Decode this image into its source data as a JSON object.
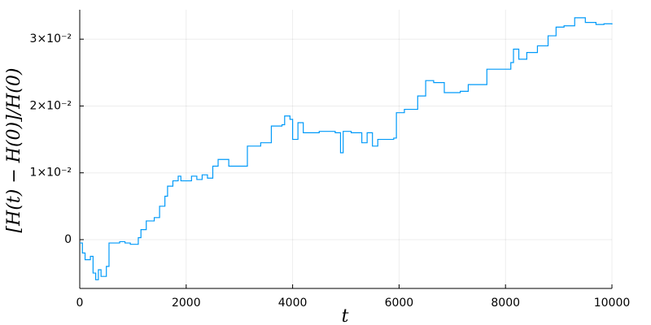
{
  "chart_data": {
    "type": "line",
    "step": "post",
    "xlabel": "t",
    "ylabel": "[H(t) − H(0)]/H(0)",
    "xlim": [
      0,
      10000
    ],
    "xticks": [
      0,
      2000,
      4000,
      6000,
      8000,
      10000
    ],
    "ylim": [
      -0.0073,
      0.0344
    ],
    "yticks": [
      0,
      {
        "value": 0.01,
        "label": "1×10⁻²"
      },
      {
        "value": 0.02,
        "label": "2×10⁻²"
      },
      {
        "value": 0.03,
        "label": "3×10⁻²"
      }
    ],
    "grid": true,
    "series": [
      {
        "color": "#009af9",
        "x": [
          0,
          50,
          100,
          200,
          250,
          300,
          350,
          400,
          500,
          550,
          650,
          750,
          850,
          950,
          1100,
          1150,
          1250,
          1400,
          1500,
          1600,
          1650,
          1750,
          1850,
          1900,
          2100,
          2200,
          2300,
          2400,
          2500,
          2600,
          2800,
          3150,
          3400,
          3600,
          3800,
          3850,
          3950,
          4000,
          4100,
          4200,
          4500,
          4800,
          4900,
          4950,
          5100,
          5300,
          5400,
          5500,
          5600,
          5900,
          5950,
          6100,
          6350,
          6500,
          6650,
          6850,
          7150,
          7300,
          7650,
          7850,
          8000,
          8100,
          8150,
          8250,
          8400,
          8600,
          8800,
          8950,
          9100,
          9300,
          9500,
          9700,
          9850,
          10000
        ],
        "values": [
          -0.0005,
          -0.002,
          -0.003,
          -0.0025,
          -0.005,
          -0.006,
          -0.0045,
          -0.0055,
          -0.004,
          -0.0005,
          -0.0005,
          -0.0003,
          -0.0005,
          -0.0007,
          0.0003,
          0.0015,
          0.0028,
          0.0033,
          0.005,
          0.0065,
          0.008,
          0.0088,
          0.0095,
          0.0088,
          0.0095,
          0.009,
          0.0097,
          0.0092,
          0.011,
          0.012,
          0.011,
          0.014,
          0.0145,
          0.017,
          0.0172,
          0.0185,
          0.018,
          0.015,
          0.0175,
          0.016,
          0.0162,
          0.016,
          0.013,
          0.0162,
          0.016,
          0.0145,
          0.016,
          0.014,
          0.015,
          0.0152,
          0.019,
          0.0195,
          0.0215,
          0.0238,
          0.0235,
          0.022,
          0.0222,
          0.0232,
          0.0255,
          0.0255,
          0.0255,
          0.0265,
          0.0285,
          0.027,
          0.028,
          0.029,
          0.0305,
          0.0318,
          0.032,
          0.0332,
          0.0325,
          0.0322,
          0.0323,
          0.0322
        ]
      }
    ]
  }
}
